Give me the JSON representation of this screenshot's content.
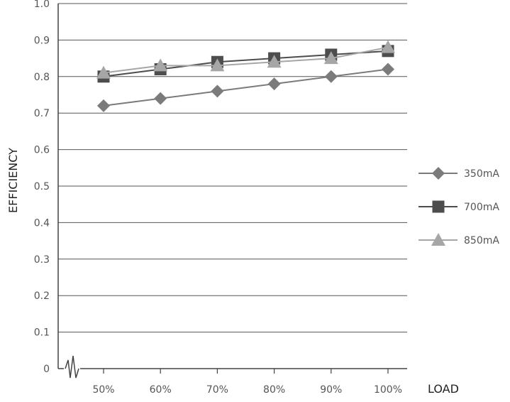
{
  "chart_data": {
    "type": "line",
    "title": "",
    "xlabel": "LOAD",
    "ylabel": "EFFICIENCY",
    "categories": [
      "50%",
      "60%",
      "70%",
      "80%",
      "90%",
      "100%"
    ],
    "y_ticks": [
      "0",
      "0.1",
      "0.2",
      "0.3",
      "0.4",
      "0.5",
      "0.6",
      "0.7",
      "0.8",
      "0.9",
      "1.0"
    ],
    "ylim": [
      0,
      1.0
    ],
    "grid": true,
    "axis_break": true,
    "legend_position": "right",
    "series": [
      {
        "name": "350mA",
        "marker": "diamond",
        "color": "#7b7b7b",
        "values": [
          0.72,
          0.74,
          0.76,
          0.78,
          0.8,
          0.82
        ]
      },
      {
        "name": "700mA",
        "marker": "square",
        "color": "#4d4d4d",
        "values": [
          0.8,
          0.82,
          0.84,
          0.85,
          0.86,
          0.87
        ]
      },
      {
        "name": "850mA",
        "marker": "triangle",
        "color": "#a6a6a6",
        "values": [
          0.81,
          0.83,
          0.83,
          0.84,
          0.85,
          0.88
        ]
      }
    ]
  }
}
